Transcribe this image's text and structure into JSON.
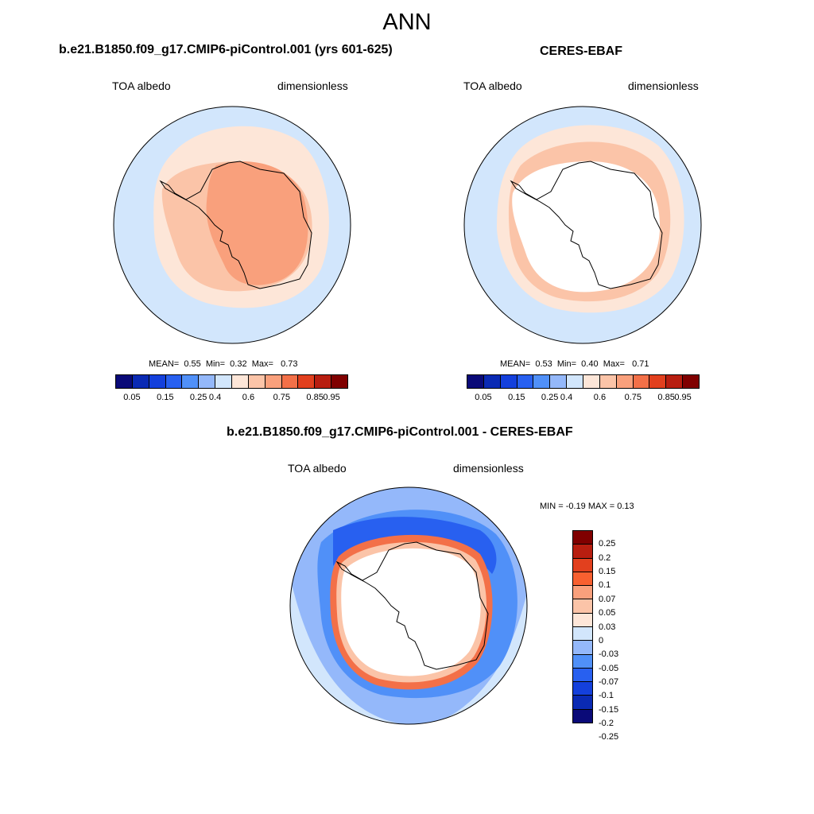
{
  "title": "ANN",
  "panels": [
    {
      "title": "b.e21.B1850.f09_g17.CMIP6-piControl.001 (yrs 601-625)",
      "variable": "TOA albedo",
      "units": "dimensionless",
      "stats": {
        "mean_label": "MEAN=",
        "mean": "0.55",
        "min_label": "Min=",
        "min": "0.32",
        "max_label": "Max=",
        "max": "0.73"
      }
    },
    {
      "title": "CERES-EBAF",
      "variable": "TOA albedo",
      "units": "dimensionless",
      "stats": {
        "mean_label": "MEAN=",
        "mean": "0.53",
        "min_label": "Min=",
        "min": "0.40",
        "max_label": "Max=",
        "max": "0.71"
      }
    },
    {
      "title": "b.e21.B1850.f09_g17.CMIP6-piControl.001 - CERES-EBAF",
      "variable": "TOA albedo",
      "units": "dimensionless",
      "stats_text": "MIN =  -0.19 MAX =   0.13"
    }
  ],
  "colorbar_abs": {
    "colors": [
      "#0a0a78",
      "#0a2ab4",
      "#1440dc",
      "#2860f0",
      "#5090f8",
      "#94b8fa",
      "#d2e6fc",
      "#fde6d8",
      "#fbc4a8",
      "#f9a07c",
      "#f37048",
      "#e2401e",
      "#b81e10",
      "#800000"
    ],
    "ticks": [
      "0.05",
      "0.15",
      "0.25",
      "0.4",
      "0.6",
      "0.75",
      "0.85",
      "0.95"
    ]
  },
  "colorbar_diff": {
    "colors": [
      "#800000",
      "#b81e10",
      "#e2401e",
      "#f86030",
      "#f9a07c",
      "#fbc4a8",
      "#fde6d8",
      "#d2e6fc",
      "#94b8fa",
      "#5090f8",
      "#2860f0",
      "#1440dc",
      "#0a2ab4",
      "#0a0a78"
    ],
    "ticks": [
      "0.25",
      "0.2",
      "0.15",
      "0.1",
      "0.07",
      "0.05",
      "0.03",
      "0",
      "-0.03",
      "-0.05",
      "-0.07",
      "-0.1",
      "-0.15",
      "-0.2",
      "-0.25"
    ]
  },
  "fill_colors": {
    "ocean_low": "#d2e6fc",
    "ocean_mid": "#fde6d8",
    "ice_high": "#f9a07c",
    "ice_mid": "#fbc4a8",
    "missing": "#ffffff",
    "diff_neg_strong": "#2860f0",
    "diff_neg": "#5090f8",
    "diff_neg_weak": "#94b8fa",
    "diff_pos": "#f37048"
  }
}
